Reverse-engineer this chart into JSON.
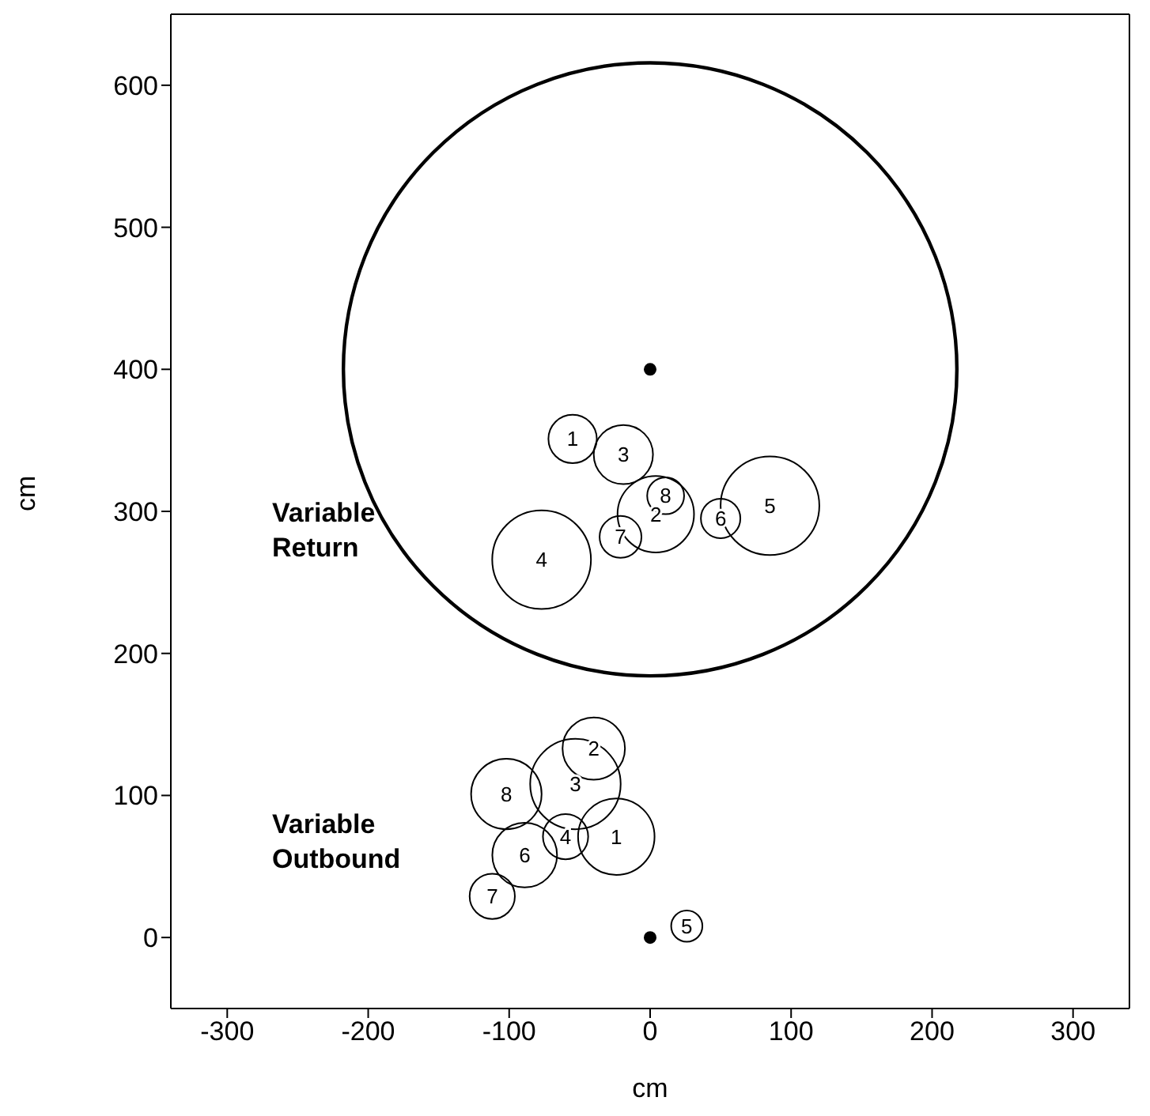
{
  "chart_data": {
    "type": "bubble",
    "xlabel": "cm",
    "ylabel": "cm",
    "xlim": [
      -340,
      340
    ],
    "ylim": [
      -50,
      650
    ],
    "xticks": [
      -300,
      -200,
      -100,
      0,
      100,
      200,
      300
    ],
    "yticks": [
      0,
      100,
      200,
      300,
      400,
      500,
      600
    ],
    "grid": false,
    "legend": false,
    "series": [
      {
        "color": "#000000",
        "x": [
          -55,
          4,
          -19,
          -77,
          85,
          50,
          -21,
          11
        ],
        "values": [
          351,
          298,
          340,
          266,
          304,
          295,
          282,
          311
        ],
        "sizes": [
          0.24,
          0.6,
          0.36,
          1,
          1,
          0.16,
          0.18,
          0.14
        ]
      },
      {
        "color": "#000000",
        "x": [
          -24,
          -40,
          -53,
          -60,
          26,
          -89,
          -112,
          -102
        ],
        "values": [
          71,
          133,
          108,
          71,
          8,
          58,
          29,
          101
        ],
        "sizes": [
          0.6,
          0.4,
          0.84,
          0.21,
          0.1,
          0.43,
          0.21,
          0.51
        ]
      },
      {
        "type": "scatter",
        "color": "#000000",
        "marker": "circle",
        "x": [
          0,
          0
        ],
        "values": [
          400,
          0
        ]
      }
    ],
    "annotations": [
      "Variable Return",
      "Variable Outbound",
      {
        "text": "1",
        "x": -55,
        "y": 351
      },
      {
        "text": "2",
        "x": 4,
        "y": 298
      },
      {
        "text": "3",
        "x": -19,
        "y": 340
      },
      {
        "text": "4",
        "x": -77,
        "y": 266
      },
      {
        "text": "5",
        "x": 85,
        "y": 304
      },
      {
        "text": "6",
        "x": 50,
        "y": 295
      },
      {
        "text": "7",
        "x": -21,
        "y": 282
      },
      {
        "text": "8",
        "x": 11,
        "y": 311
      },
      {
        "text": "1",
        "x": -24,
        "y": 71
      },
      {
        "text": "2",
        "x": -40,
        "y": 133
      },
      {
        "text": "3",
        "x": -53,
        "y": 108
      },
      {
        "text": "4",
        "x": -60,
        "y": 71
      },
      {
        "text": "5",
        "x": 26,
        "y": 8
      },
      {
        "text": "6",
        "x": -89,
        "y": 58
      },
      {
        "text": "7",
        "x": -112,
        "y": 29
      },
      {
        "text": "8",
        "x": -102,
        "y": 101
      }
    ]
  }
}
